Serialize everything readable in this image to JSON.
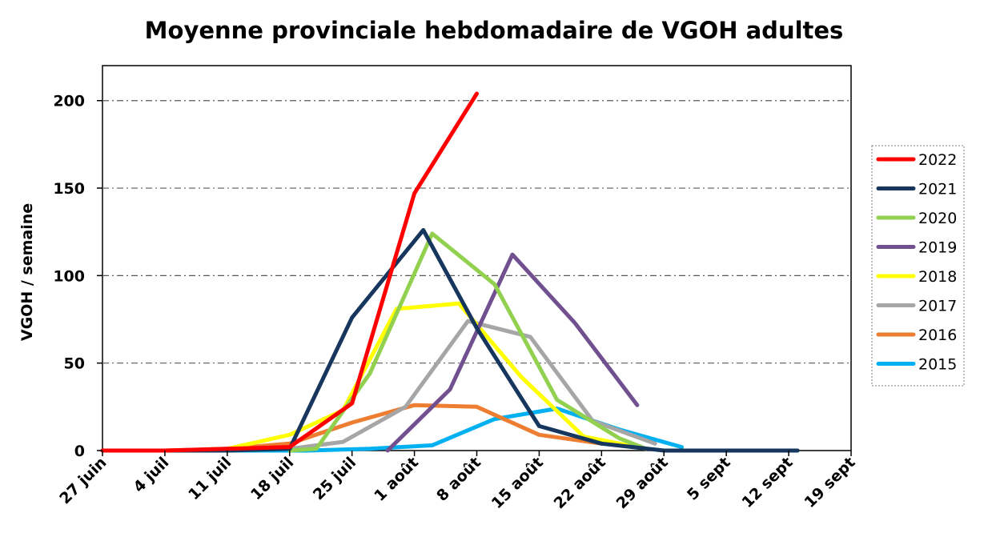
{
  "chart_data": {
    "type": "line",
    "title": "Moyenne provinciale hebdomadaire de VGOH adultes",
    "xlabel": "",
    "ylabel": "VGOH / semaine",
    "x_ticks": [
      "27 juin",
      "4 juil",
      "11 juil",
      "18 juil",
      "25 juil",
      "1 août",
      "8 août",
      "15 août",
      "22 août",
      "29 août",
      "5 sept",
      "12 sept",
      "19 sept"
    ],
    "x_unit": "days since 27 juin",
    "xlim": [
      0,
      84
    ],
    "ylim": [
      0,
      220
    ],
    "y_ticks": [
      0,
      50,
      100,
      150,
      200
    ],
    "grid": true,
    "legend_position": "right",
    "series": [
      {
        "name": "2022",
        "color": "#ff0000",
        "points": [
          [
            0,
            0
          ],
          [
            7,
            0
          ],
          [
            14,
            1
          ],
          [
            21,
            2
          ],
          [
            28,
            27
          ],
          [
            35,
            147
          ],
          [
            42,
            204
          ]
        ]
      },
      {
        "name": "2021",
        "color": "#17365d",
        "points": [
          [
            0,
            0
          ],
          [
            7,
            0
          ],
          [
            14,
            0
          ],
          [
            21,
            1
          ],
          [
            28,
            76
          ],
          [
            36,
            126
          ],
          [
            42,
            70
          ],
          [
            49,
            14
          ],
          [
            56,
            4
          ],
          [
            63,
            0
          ],
          [
            70,
            0
          ],
          [
            77,
            0
          ],
          [
            78,
            0
          ]
        ]
      },
      {
        "name": "2020",
        "color": "#92d050",
        "points": [
          [
            21,
            0
          ],
          [
            24,
            1
          ],
          [
            30,
            44
          ],
          [
            37,
            124
          ],
          [
            44,
            95
          ],
          [
            51,
            29
          ],
          [
            58,
            7
          ],
          [
            61,
            1
          ]
        ]
      },
      {
        "name": "2019",
        "color": "#70508f",
        "points": [
          [
            32,
            0
          ],
          [
            39,
            35
          ],
          [
            46,
            112
          ],
          [
            53,
            73
          ],
          [
            60,
            26
          ]
        ]
      },
      {
        "name": "2018",
        "color": "#ffff00",
        "points": [
          [
            14,
            1
          ],
          [
            21,
            9
          ],
          [
            27,
            23
          ],
          [
            33,
            81
          ],
          [
            40,
            84
          ],
          [
            47,
            42
          ],
          [
            54,
            8
          ],
          [
            61,
            1
          ]
        ]
      },
      {
        "name": "2017",
        "color": "#a6a6a6",
        "points": [
          [
            21,
            1
          ],
          [
            27,
            5
          ],
          [
            34,
            25
          ],
          [
            41,
            74
          ],
          [
            48,
            65
          ],
          [
            55,
            17
          ],
          [
            62,
            4
          ]
        ]
      },
      {
        "name": "2016",
        "color": "#ed7d31",
        "points": [
          [
            0,
            0
          ],
          [
            7,
            0
          ],
          [
            14,
            1
          ],
          [
            21,
            4
          ],
          [
            28,
            16
          ],
          [
            35,
            26
          ],
          [
            42,
            25
          ],
          [
            49,
            9
          ],
          [
            56,
            4
          ]
        ]
      },
      {
        "name": "2015",
        "color": "#00b0f0",
        "points": [
          [
            9,
            0
          ],
          [
            16,
            0
          ],
          [
            23,
            0
          ],
          [
            30,
            1
          ],
          [
            37,
            3
          ],
          [
            44,
            18
          ],
          [
            51,
            24
          ],
          [
            58,
            12
          ],
          [
            65,
            2
          ]
        ]
      }
    ]
  }
}
